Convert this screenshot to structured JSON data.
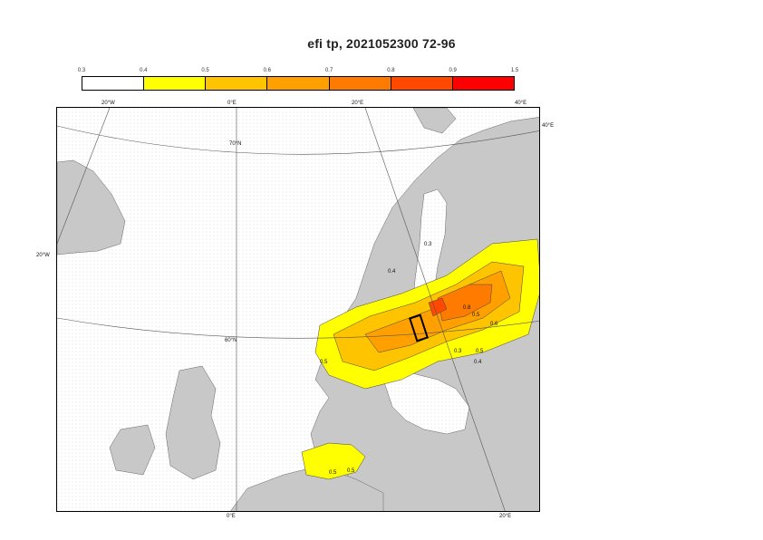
{
  "title": "efi tp, 2021052300 72-96",
  "colorbar": {
    "ticks": [
      "0.3",
      "0.4",
      "0.5",
      "0.6",
      "0.7",
      "0.8",
      "0.9",
      "1.5"
    ],
    "colors": [
      "#ffffff",
      "#ffffff",
      "#ffff00",
      "#ffc400",
      "#ffa000",
      "#ff7b00",
      "#ff4800",
      "#ff0000"
    ]
  },
  "colors": {
    "land": "#c8c8c8",
    "sea": "#ffffff",
    "stipple": "#d4d4d4"
  },
  "map": {
    "outer_labels": {
      "top_w20": "20°W",
      "top_0": "0°E",
      "top_e20": "20°E",
      "top_e40": "40°E",
      "right_e40": "40°E",
      "left_w20": "20°W",
      "bottom_0": "0°E",
      "bottom_e20": "20°E"
    },
    "parallels": {
      "n70": "70°N",
      "n60": "60°N"
    },
    "contour_labels": [
      "0.3",
      "0.4",
      "0.5",
      "0.8",
      "0.5",
      "0.6",
      "0.3",
      "0.5",
      "0.4",
      "0.5",
      "0.5"
    ]
  }
}
